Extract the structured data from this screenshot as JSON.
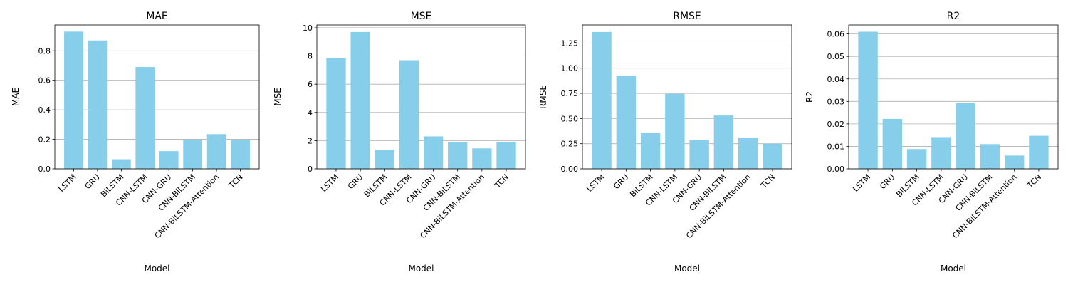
{
  "chart_data": [
    {
      "type": "bar",
      "title": "MAE",
      "xlabel": "Model",
      "ylabel": "MAE",
      "categories": [
        "LSTM",
        "GRU",
        "BiLSTM",
        "CNN-LSTM",
        "CNN-GRU",
        "CNN-BiLSTM",
        "CNN-BiLSTM-Attention",
        "TCN"
      ],
      "values": [
        0.93,
        0.87,
        0.065,
        0.69,
        0.12,
        0.195,
        0.235,
        0.195
      ],
      "ylim": [
        0,
        0.975
      ],
      "yticks": [
        0.0,
        0.2,
        0.4,
        0.6,
        0.8
      ],
      "ytick_labels": [
        "0.0",
        "0.2",
        "0.4",
        "0.6",
        "0.8"
      ],
      "grid": "y",
      "bar_color": "#87CEEB"
    },
    {
      "type": "bar",
      "title": "MSE",
      "xlabel": "Model",
      "ylabel": "MSE",
      "categories": [
        "LSTM",
        "GRU",
        "BiLSTM",
        "CNN-LSTM",
        "CNN-GRU",
        "CNN-BiLSTM",
        "CNN-BiLSTM-Attention",
        "TCN"
      ],
      "values": [
        7.85,
        9.7,
        1.35,
        7.7,
        2.3,
        1.9,
        1.45,
        1.9
      ],
      "ylim": [
        0,
        10.2
      ],
      "yticks": [
        0,
        2,
        4,
        6,
        8,
        10
      ],
      "ytick_labels": [
        "0",
        "2",
        "4",
        "6",
        "8",
        "10"
      ],
      "grid": "y",
      "bar_color": "#87CEEB"
    },
    {
      "type": "bar",
      "title": "RMSE",
      "xlabel": "Model",
      "ylabel": "RMSE",
      "categories": [
        "LSTM",
        "GRU",
        "BiLSTM",
        "CNN-LSTM",
        "CNN-GRU",
        "CNN-BiLSTM",
        "CNN-BiLSTM-Attention",
        "TCN"
      ],
      "values": [
        1.36,
        0.925,
        0.36,
        0.745,
        0.285,
        0.53,
        0.31,
        0.25
      ],
      "ylim": [
        0,
        1.43
      ],
      "yticks": [
        0.0,
        0.25,
        0.5,
        0.75,
        1.0,
        1.25
      ],
      "ytick_labels": [
        "0.00",
        "0.25",
        "0.50",
        "0.75",
        "1.00",
        "1.25"
      ],
      "grid": "y",
      "bar_color": "#87CEEB"
    },
    {
      "type": "bar",
      "title": "R2",
      "xlabel": "Model",
      "ylabel": "R2",
      "categories": [
        "LSTM",
        "GRU",
        "BiLSTM",
        "CNN-LSTM",
        "CNN-GRU",
        "CNN-BiLSTM",
        "CNN-BiLSTM-Attention",
        "TCN"
      ],
      "values": [
        0.061,
        0.0222,
        0.0088,
        0.0141,
        0.0292,
        0.011,
        0.0059,
        0.0147
      ],
      "ylim": [
        0,
        0.064
      ],
      "yticks": [
        0.0,
        0.01,
        0.02,
        0.03,
        0.04,
        0.05,
        0.06
      ],
      "ytick_labels": [
        "0.00",
        "0.01",
        "0.02",
        "0.03",
        "0.04",
        "0.05",
        "0.06"
      ],
      "grid": "y",
      "bar_color": "#87CEEB"
    }
  ]
}
